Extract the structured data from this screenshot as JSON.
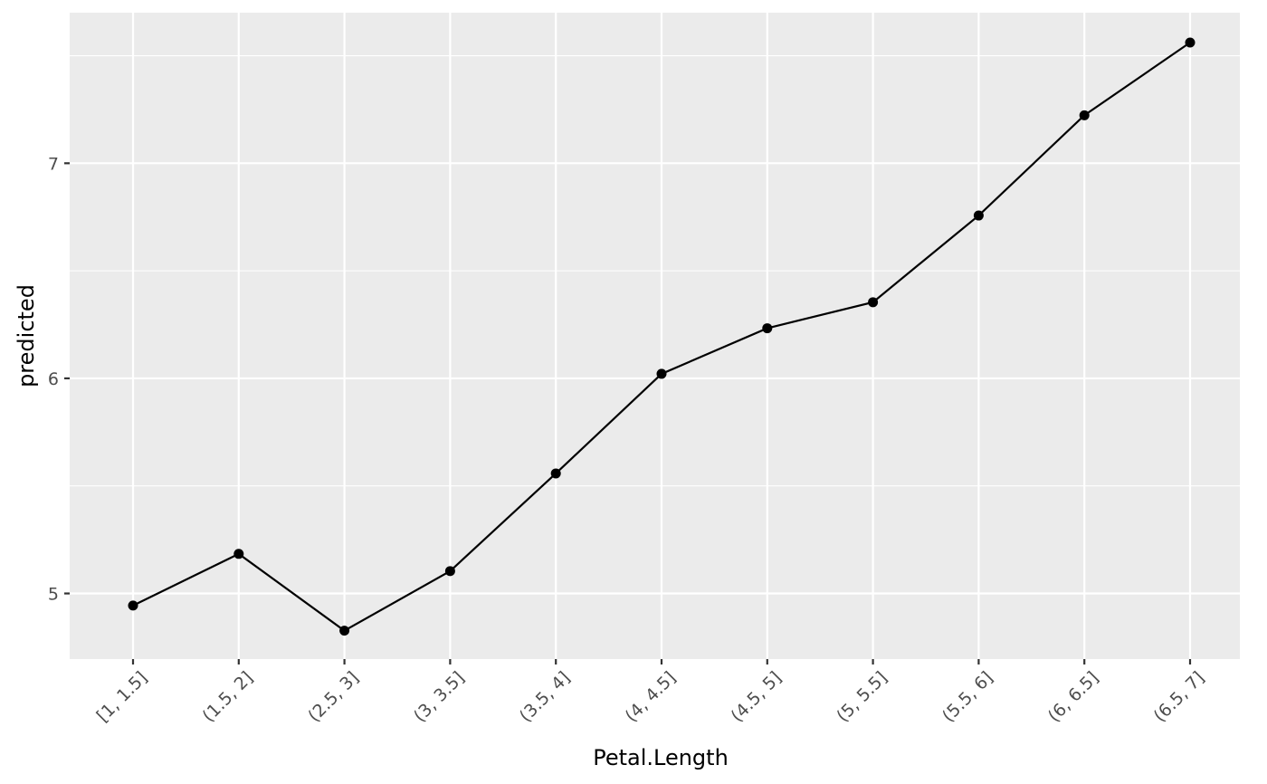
{
  "chart_data": {
    "type": "line",
    "xlabel": "Petal.Length",
    "ylabel": "predicted",
    "categories": [
      "[1, 1.5]",
      "(1.5, 2]",
      "(2.5, 3]",
      "(3, 3.5]",
      "(3.5, 4]",
      "(4, 4.5]",
      "(4.5, 5]",
      "(5, 5.5]",
      "(5.5, 6]",
      "(6, 6.5]",
      "(6.5, 7]"
    ],
    "series": [
      {
        "values": [
          4.944,
          5.184,
          4.827,
          5.104,
          5.558,
          6.021,
          6.233,
          6.354,
          6.757,
          7.223,
          7.561
        ]
      }
    ],
    "yticks": [
      5,
      6,
      7
    ],
    "ylim": [
      4.695,
      7.7
    ],
    "grid": true,
    "legend": "none",
    "colors": {
      "panel": "#ebebeb",
      "grid": "#ffffff",
      "line": "#000000",
      "tick_text": "#4d4d4d"
    }
  }
}
